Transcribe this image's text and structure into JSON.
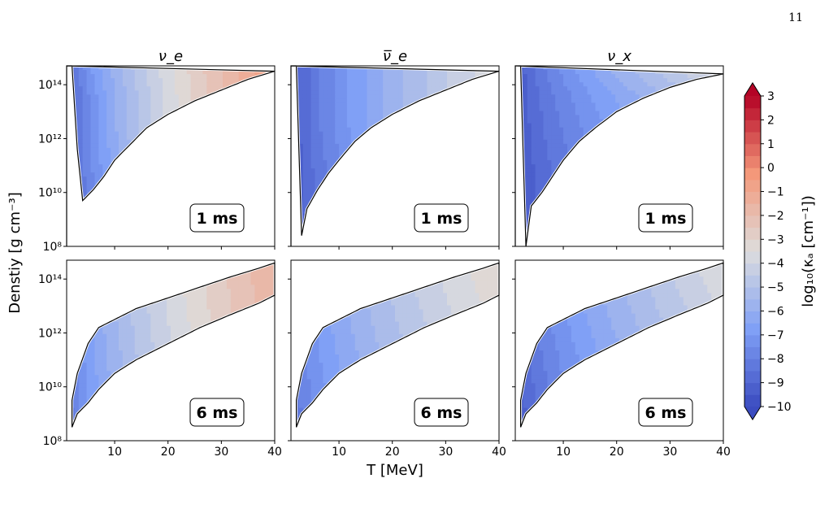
{
  "page_number": "11",
  "colorbar": {
    "label": "log₁₀(κₐ [cm⁻¹])",
    "ticks": [
      "3",
      "2",
      "1",
      "0",
      "−1",
      "−2",
      "−3",
      "−4",
      "−5",
      "−6",
      "−7",
      "−8",
      "−9",
      "−10"
    ],
    "min": -10,
    "max": 3,
    "extend": "both"
  },
  "chart_data": [
    {
      "type": "heatmap",
      "title": "ν_e",
      "box": "1 ms",
      "ylabel": "Denstiy [g cm⁻³]",
      "xlabel": "",
      "xlim": [
        1,
        40
      ],
      "ylim": [
        8,
        14.7
      ],
      "xticks": [],
      "yticks": [
        "10⁸",
        "10¹⁰",
        "10¹²",
        "10¹⁴"
      ],
      "boundary_T": [
        1,
        2,
        3,
        4,
        6,
        8,
        10,
        13,
        16,
        20,
        25,
        30,
        35,
        40
      ],
      "boundary_logrho": [
        14.7,
        14.7,
        11.6,
        9.7,
        10.1,
        10.6,
        11.2,
        11.8,
        12.4,
        12.9,
        13.4,
        13.8,
        14.2,
        14.5
      ],
      "log_kappa_at_Tmin": [
        -10,
        -10,
        -10,
        -10,
        -10,
        -10,
        -9.5
      ],
      "log_kappa_at_Tmax": [
        -3,
        -2,
        -1.5,
        -1,
        -0.5,
        -0.5,
        -0.5
      ],
      "notable_contour": "thick solid line near log10 kappa = -4"
    },
    {
      "type": "heatmap",
      "title": "ν̅_e",
      "box": "1 ms",
      "ylabel": "",
      "xlabel": "",
      "xlim": [
        1,
        40
      ],
      "ylim": [
        8,
        14.7
      ],
      "xticks": [],
      "yticks": [],
      "boundary_T": [
        1,
        2,
        3,
        4,
        6,
        8,
        10,
        13,
        16,
        20,
        25,
        30,
        35,
        40
      ],
      "boundary_logrho": [
        14.7,
        14.7,
        8.4,
        9.4,
        10.1,
        10.7,
        11.2,
        11.9,
        12.4,
        12.9,
        13.4,
        13.8,
        14.2,
        14.5
      ],
      "log_kappa_at_Tmin": [
        -10,
        -10,
        -10,
        -10,
        -10,
        -10,
        -10
      ],
      "log_kappa_at_Tmax": [
        -6,
        -5,
        -4.5,
        -4,
        -3.5,
        -3.5,
        -3.5
      ]
    },
    {
      "type": "heatmap",
      "title": "ν_x",
      "box": "1 ms",
      "ylabel": "",
      "xlabel": "",
      "xlim": [
        1,
        40
      ],
      "ylim": [
        8,
        14.7
      ],
      "xticks": [],
      "yticks": [],
      "boundary_T": [
        1,
        2,
        3,
        4,
        6,
        8,
        10,
        13,
        16,
        20,
        25,
        30,
        35,
        40
      ],
      "boundary_logrho": [
        14.7,
        14.7,
        8.0,
        9.5,
        10.0,
        10.6,
        11.2,
        11.9,
        12.4,
        13.0,
        13.5,
        13.9,
        14.2,
        14.4
      ],
      "log_kappa_at_Tmin": [
        -10,
        -10,
        -10,
        -10,
        -10,
        -10,
        -10
      ],
      "log_kappa_at_Tmax": [
        -6,
        -6,
        -6,
        -5.5,
        -5,
        -4.5,
        -3.5
      ]
    },
    {
      "type": "heatmap",
      "title": "",
      "box": "6 ms",
      "ylabel": "",
      "xlabel": "",
      "xlim": [
        1,
        40
      ],
      "ylim": [
        8,
        14.7
      ],
      "xticks": [
        "10",
        "20",
        "30",
        "40"
      ],
      "yticks": [
        "10⁸",
        "10¹⁰",
        "10¹²",
        "10¹⁴"
      ],
      "lower_T": [
        2,
        3,
        5,
        7,
        10,
        14,
        20,
        26,
        32,
        37,
        40
      ],
      "lower_logrho": [
        8.5,
        9.0,
        9.4,
        9.9,
        10.5,
        11.0,
        11.6,
        12.2,
        12.7,
        13.1,
        13.4
      ],
      "upper_T": [
        2,
        3,
        5,
        7,
        10,
        14,
        20,
        26,
        32,
        37,
        40
      ],
      "upper_logrho": [
        9.5,
        10.5,
        11.6,
        12.2,
        12.5,
        12.9,
        13.3,
        13.7,
        14.1,
        14.4,
        14.6
      ],
      "log_kappa_at_Tmin": [
        -9,
        -8
      ],
      "log_kappa_at_Tmax": [
        -2,
        -1.5
      ]
    },
    {
      "type": "heatmap",
      "title": "",
      "box": "6 ms",
      "ylabel": "",
      "xlabel": "T [MeV]",
      "xlim": [
        1,
        40
      ],
      "ylim": [
        8,
        14.7
      ],
      "xticks": [
        "10",
        "20",
        "30",
        "40"
      ],
      "yticks": [],
      "lower_T": [
        2,
        3,
        5,
        7,
        10,
        14,
        20,
        26,
        32,
        37,
        40
      ],
      "lower_logrho": [
        8.5,
        9.0,
        9.4,
        9.9,
        10.5,
        11.0,
        11.6,
        12.2,
        12.7,
        13.1,
        13.4
      ],
      "upper_T": [
        2,
        3,
        5,
        7,
        10,
        14,
        20,
        26,
        32,
        37,
        40
      ],
      "upper_logrho": [
        9.5,
        10.5,
        11.6,
        12.2,
        12.5,
        12.9,
        13.3,
        13.7,
        14.1,
        14.4,
        14.6
      ],
      "log_kappa_at_Tmin": [
        -9,
        -8
      ],
      "log_kappa_at_Tmax": [
        -4,
        -3
      ]
    },
    {
      "type": "heatmap",
      "title": "",
      "box": "6 ms",
      "ylabel": "",
      "xlabel": "",
      "xlim": [
        1,
        40
      ],
      "ylim": [
        8,
        14.7
      ],
      "xticks": [
        "10",
        "20",
        "30",
        "40"
      ],
      "yticks": [],
      "lower_T": [
        2,
        3,
        5,
        7,
        10,
        14,
        20,
        26,
        32,
        37,
        40
      ],
      "lower_logrho": [
        8.5,
        9.0,
        9.4,
        9.9,
        10.5,
        11.0,
        11.6,
        12.2,
        12.7,
        13.1,
        13.4
      ],
      "upper_T": [
        2,
        3,
        5,
        7,
        10,
        14,
        20,
        26,
        32,
        37,
        40
      ],
      "upper_logrho": [
        9.5,
        10.5,
        11.6,
        12.2,
        12.5,
        12.9,
        13.3,
        13.7,
        14.1,
        14.4,
        14.6
      ],
      "log_kappa_at_Tmin": [
        -10,
        -9
      ],
      "log_kappa_at_Tmax": [
        -5,
        -3.5
      ]
    }
  ]
}
